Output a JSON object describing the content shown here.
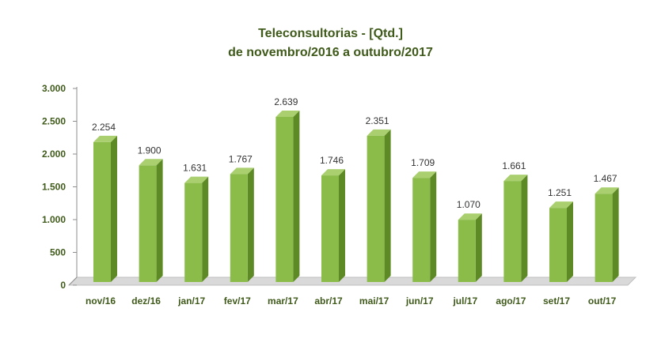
{
  "chart_data": {
    "type": "bar",
    "title_line1": "Teleconsultorias -  [Qtd.]",
    "title_line2": "de novembro/2016 a outubro/2017",
    "categories": [
      "nov/16",
      "dez/16",
      "jan/17",
      "fev/17",
      "mar/17",
      "abr/17",
      "mai/17",
      "jun/17",
      "jul/17",
      "ago/17",
      "set/17",
      "out/17"
    ],
    "values": [
      2254,
      1900,
      1631,
      1767,
      2639,
      1746,
      2351,
      1709,
      1070,
      1661,
      1251,
      1467
    ],
    "data_labels": [
      "2.254",
      "1.900",
      "1.631",
      "1.767",
      "2.639",
      "1.746",
      "2.351",
      "1.709",
      "1.070",
      "1.661",
      "1.251",
      "1.467"
    ],
    "ylim": [
      0,
      3000
    ],
    "yticks": [
      0,
      500,
      1000,
      1500,
      2000,
      2500,
      3000
    ],
    "ytick_labels": [
      "0",
      "500",
      "1.000",
      "1.500",
      "2.000",
      "2.500",
      "3.000"
    ],
    "grid": false,
    "legend": "none",
    "colors": {
      "bar_front": "#8bbc4a",
      "bar_side": "#5e8a25",
      "bar_top": "#a9cf6f",
      "floor": "#d9d9d9",
      "axis": "#8c8c8c",
      "text": "#3f5a1a"
    }
  }
}
